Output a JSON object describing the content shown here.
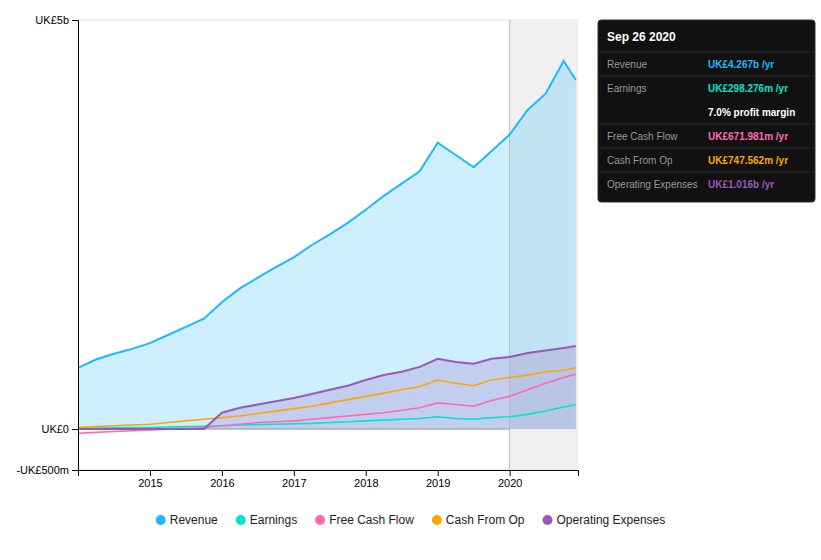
{
  "chart_data": {
    "type": "line",
    "x": [
      2014.0,
      2014.25,
      2014.5,
      2014.75,
      2015.0,
      2015.25,
      2015.5,
      2015.75,
      2016.0,
      2016.25,
      2016.5,
      2016.75,
      2017.0,
      2017.25,
      2017.5,
      2017.75,
      2018.0,
      2018.25,
      2018.5,
      2018.75,
      2019.0,
      2019.25,
      2019.5,
      2019.75,
      2020.0,
      2020.25,
      2020.5,
      2020.75,
      2020.92
    ],
    "series": [
      {
        "name": "Revenue",
        "type": "area",
        "color": "#1eb8ff",
        "values": [
          0.75,
          0.85,
          0.92,
          0.98,
          1.05,
          1.15,
          1.25,
          1.35,
          1.55,
          1.72,
          1.85,
          1.98,
          2.1,
          2.25,
          2.38,
          2.52,
          2.68,
          2.85,
          3.0,
          3.15,
          3.5,
          3.35,
          3.2,
          3.4,
          3.6,
          3.9,
          4.1,
          4.5,
          4.267
        ]
      },
      {
        "name": "Earnings",
        "type": "line",
        "color": "#00e5cc",
        "values": [
          0.01,
          0.012,
          0.015,
          0.018,
          0.02,
          0.025,
          0.03,
          0.035,
          0.04,
          0.05,
          0.055,
          0.06,
          0.065,
          0.07,
          0.08,
          0.09,
          0.1,
          0.11,
          0.12,
          0.13,
          0.15,
          0.13,
          0.12,
          0.14,
          0.15,
          0.18,
          0.22,
          0.27,
          0.298
        ]
      },
      {
        "name": "Free Cash Flow",
        "type": "line",
        "color": "#ff69b4",
        "values": [
          -0.05,
          -0.04,
          -0.03,
          -0.02,
          -0.01,
          0.0,
          0.01,
          0.02,
          0.04,
          0.06,
          0.08,
          0.09,
          0.1,
          0.12,
          0.14,
          0.16,
          0.18,
          0.2,
          0.23,
          0.26,
          0.32,
          0.3,
          0.28,
          0.35,
          0.4,
          0.48,
          0.56,
          0.63,
          0.672
        ]
      },
      {
        "name": "Cash From Op",
        "type": "line",
        "color": "#ffa500",
        "values": [
          0.02,
          0.03,
          0.04,
          0.05,
          0.06,
          0.08,
          0.1,
          0.12,
          0.14,
          0.16,
          0.19,
          0.22,
          0.25,
          0.28,
          0.32,
          0.36,
          0.4,
          0.44,
          0.48,
          0.52,
          0.6,
          0.56,
          0.53,
          0.6,
          0.63,
          0.66,
          0.7,
          0.72,
          0.748
        ]
      },
      {
        "name": "Operating Expenses",
        "type": "area",
        "color": "#9b59b6",
        "values": [
          0.0,
          0.0,
          0.0,
          0.0,
          0.0,
          0.0,
          0.0,
          0.0,
          0.2,
          0.26,
          0.3,
          0.34,
          0.38,
          0.43,
          0.48,
          0.53,
          0.6,
          0.66,
          0.7,
          0.76,
          0.86,
          0.82,
          0.8,
          0.86,
          0.88,
          0.93,
          0.96,
          0.99,
          1.016
        ]
      }
    ],
    "xlim": [
      2014.0,
      2020.95
    ],
    "xticks": [
      2015,
      2016,
      2017,
      2018,
      2019,
      2020
    ],
    "ylim": [
      -0.5,
      5.0
    ],
    "yticks": [
      {
        "value": 5.0,
        "label": "UK£5b"
      },
      {
        "value": 0.0,
        "label": "UK£0"
      },
      {
        "value": -0.5,
        "label": "-UK£500m"
      }
    ],
    "shaded_x": [
      2020.0,
      2020.95
    ],
    "grid": true,
    "legend": "bottom",
    "tooltip": {
      "title": "Sep 26 2020",
      "rows": [
        {
          "label": "Revenue",
          "value": "UK£4.267b /yr",
          "color": "#1eb8ff"
        },
        {
          "label": "Earnings",
          "value": "UK£298.276m /yr",
          "color": "#00e5cc"
        },
        {
          "value": "7.0% profit margin",
          "color": "#ffffff"
        },
        {
          "label": "Free Cash Flow",
          "value": "UK£671.981m /yr",
          "color": "#ff69b4"
        },
        {
          "label": "Cash From Op",
          "value": "UK£747.562m /yr",
          "color": "#ffa500"
        },
        {
          "label": "Operating Expenses",
          "value": "UK£1.016b /yr",
          "color": "#9b59b6"
        }
      ]
    }
  }
}
